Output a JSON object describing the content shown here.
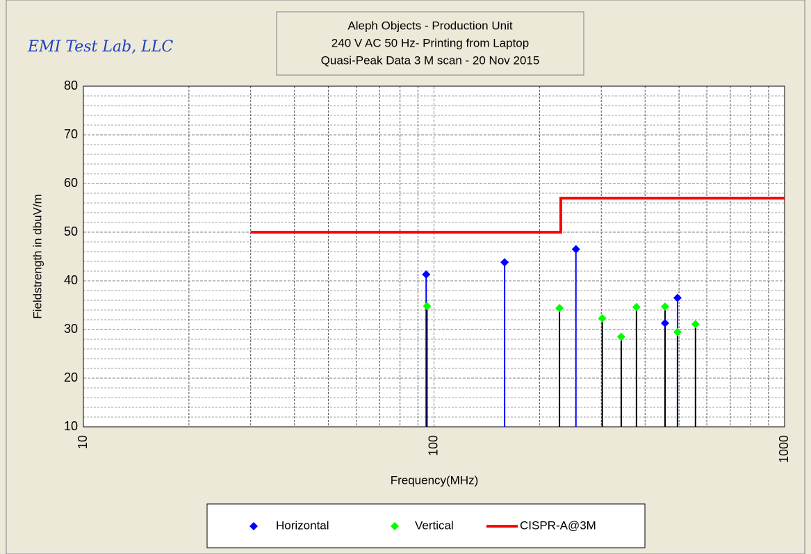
{
  "chart_data": {
    "type": "stem",
    "brand": "EMI Test Lab, LLC",
    "title": [
      "Aleph Objects - Production Unit",
      "240 V AC 50 Hz- Printing from Laptop",
      "Quasi-Peak Data  3 M scan -  20 Nov 2015"
    ],
    "x_label": "Frequency(MHz)",
    "y_label": "Fieldstrength in dbuV/m",
    "xlim": [
      10,
      1000
    ],
    "xticks": [
      10,
      100,
      1000
    ],
    "log_x": true,
    "ylim": [
      10,
      80
    ],
    "yticks": [
      10,
      20,
      30,
      40,
      50,
      60,
      70,
      80
    ],
    "grid": true,
    "series": [
      {
        "name": "Horizontal",
        "type": "stem",
        "color": "#0000ff",
        "stem_color": "#0000ff",
        "x": [
          95,
          159,
          254,
          456,
          495
        ],
        "values": [
          41.3,
          43.8,
          46.5,
          31.3,
          36.5
        ]
      },
      {
        "name": "Vertical",
        "type": "stem",
        "color": "#00ff00",
        "stem_color": "#000000",
        "x": [
          95.5,
          228,
          302,
          342,
          378,
          456,
          495,
          557
        ],
        "values": [
          34.8,
          34.4,
          32.3,
          28.5,
          34.6,
          34.7,
          29.5,
          31.1
        ]
      },
      {
        "name": "CISPR-A@3M",
        "type": "line",
        "color": "#ff0000",
        "x": [
          30,
          230,
          230,
          1000
        ],
        "values": [
          50,
          50,
          57,
          57
        ]
      }
    ]
  }
}
